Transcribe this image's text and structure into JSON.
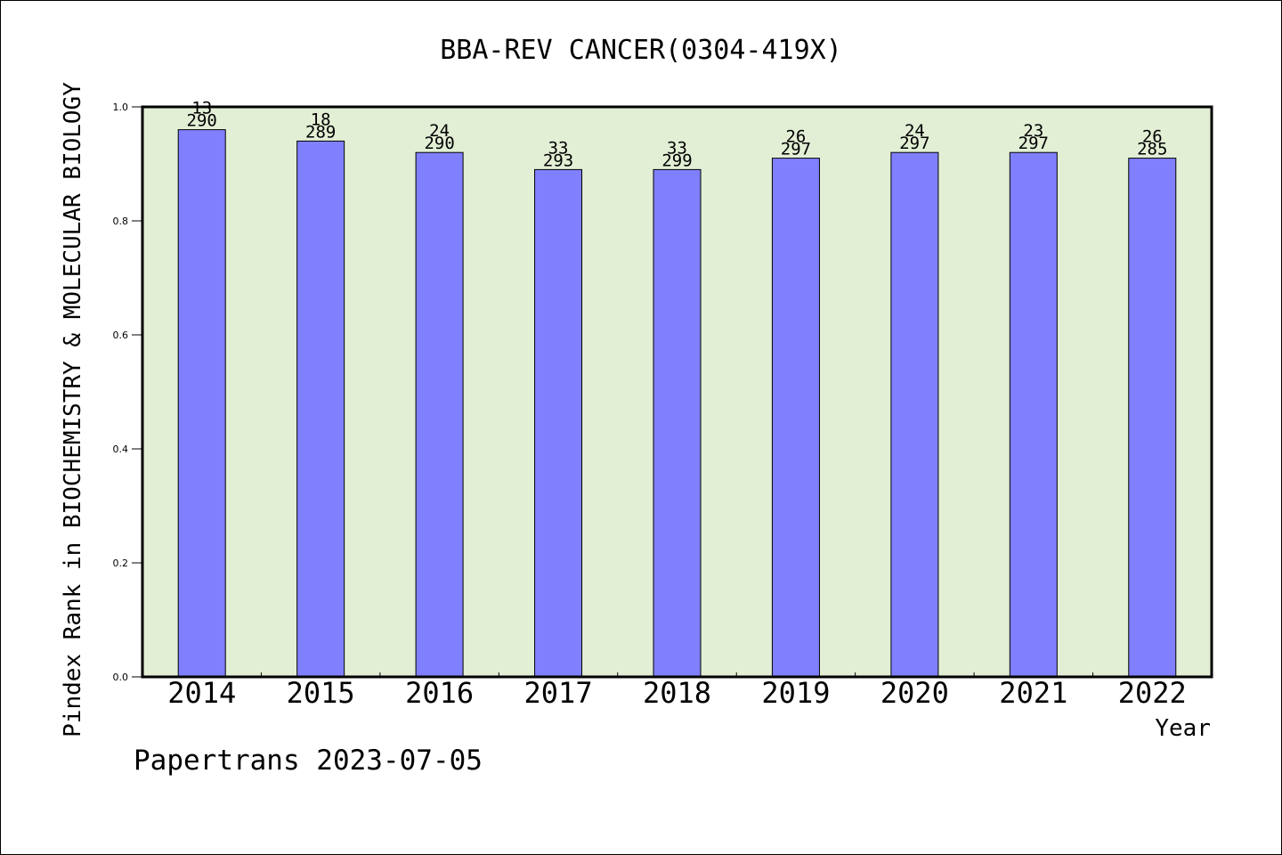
{
  "chart_data": {
    "type": "bar",
    "title": "BBA-REV CANCER(0304-419X)",
    "xlabel": "Year",
    "ylabel": "Pindex Rank in BIOCHEMISTRY & MOLECULAR BIOLOGY",
    "categories": [
      "2014",
      "2015",
      "2016",
      "2017",
      "2018",
      "2019",
      "2020",
      "2021",
      "2022"
    ],
    "values": [
      0.96,
      0.94,
      0.92,
      0.89,
      0.89,
      0.91,
      0.92,
      0.92,
      0.91
    ],
    "rank_labels": [
      "13",
      "18",
      "24",
      "33",
      "33",
      "26",
      "24",
      "23",
      "26"
    ],
    "total_labels": [
      "290",
      "289",
      "290",
      "293",
      "299",
      "297",
      "297",
      "297",
      "285"
    ],
    "ylim": [
      0,
      1.0
    ],
    "yticks": [
      "0.0",
      "0.2",
      "0.4",
      "0.6",
      "0.8",
      "1.0"
    ],
    "grid": false,
    "colors": {
      "bar": "#8080ff",
      "plot_bg": "#e2efd5",
      "axis": "#000000"
    }
  },
  "footer": {
    "source": "Papertrans 2023-07-05"
  }
}
